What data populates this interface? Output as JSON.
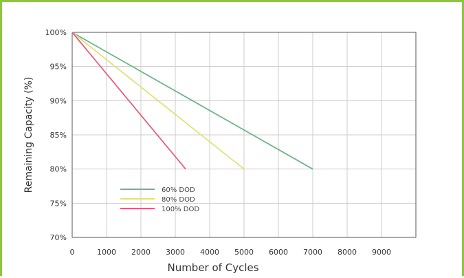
{
  "chart_data": {
    "type": "line",
    "xlabel": "Number of Cycles",
    "ylabel": "Remaining Capacity (%)",
    "xlim": [
      0,
      10000
    ],
    "ylim": [
      70,
      100
    ],
    "x_ticks": [
      0,
      1000,
      2000,
      3000,
      4000,
      5000,
      6000,
      7000,
      8000,
      9000
    ],
    "x_tick_labels": [
      "0",
      "1000",
      "2000",
      "3000",
      "4000",
      "5000",
      "6000",
      "7000",
      "8000",
      "9000"
    ],
    "y_ticks": [
      70,
      75,
      80,
      85,
      90,
      95,
      100
    ],
    "y_tick_labels": [
      "70%",
      "75%",
      "80%",
      "85%",
      "90%",
      "95%",
      "100%"
    ],
    "grid": true,
    "legend_position": "bottom-left",
    "series": [
      {
        "name": "60% DOD",
        "color": "#6fb38a",
        "x": [
          0,
          7000
        ],
        "y": [
          100,
          80
        ]
      },
      {
        "name": "80% DOD",
        "color": "#e2e07a",
        "x": [
          0,
          5000
        ],
        "y": [
          100,
          80
        ]
      },
      {
        "name": "100% DOD",
        "color": "#e0607e",
        "x": [
          0,
          3300
        ],
        "y": [
          100,
          80
        ]
      }
    ]
  }
}
